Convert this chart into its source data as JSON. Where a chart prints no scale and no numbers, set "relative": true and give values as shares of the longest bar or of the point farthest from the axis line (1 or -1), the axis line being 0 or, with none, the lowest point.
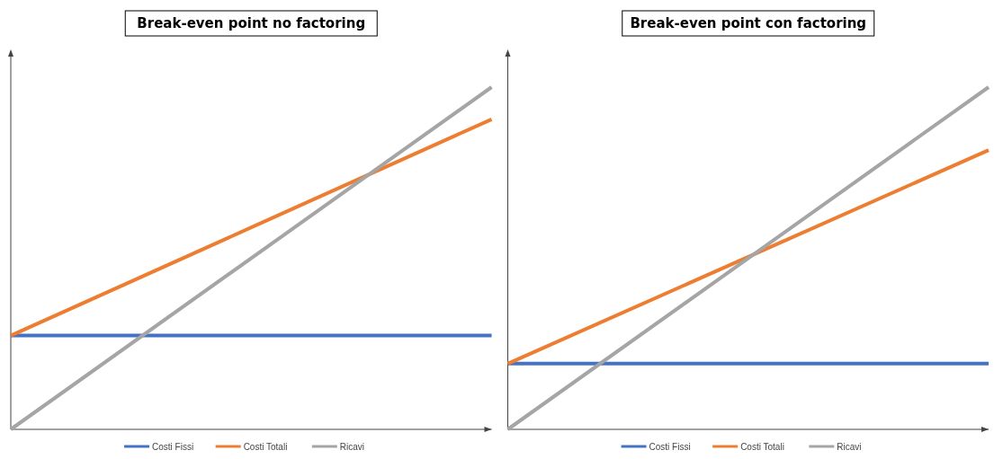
{
  "chart_data": [
    {
      "type": "line",
      "title": "Break-even point no factoring",
      "relative": true,
      "categories": [
        null,
        null
      ],
      "legend": "bottom",
      "series": [
        {
          "name": "Costi Fissi",
          "color": "#4472c4",
          "values": [
            0.274,
            0.274
          ]
        },
        {
          "name": "Costi Totali",
          "color": "#ed7d31",
          "values": [
            0.274,
            0.906
          ]
        },
        {
          "name": "Ricavi",
          "color": "#a5a5a5",
          "values": [
            0,
            1
          ]
        }
      ]
    },
    {
      "type": "line",
      "title": "Break-even point con factoring",
      "relative": true,
      "categories": [
        null,
        null
      ],
      "legend": "bottom",
      "series": [
        {
          "name": "Costi Fissi",
          "color": "#4472c4",
          "values": [
            0.192,
            0.192
          ]
        },
        {
          "name": "Costi Totali",
          "color": "#ed7d31",
          "values": [
            0.192,
            0.816
          ]
        },
        {
          "name": "Ricavi",
          "color": "#a5a5a5",
          "values": [
            0,
            1
          ]
        }
      ]
    }
  ]
}
